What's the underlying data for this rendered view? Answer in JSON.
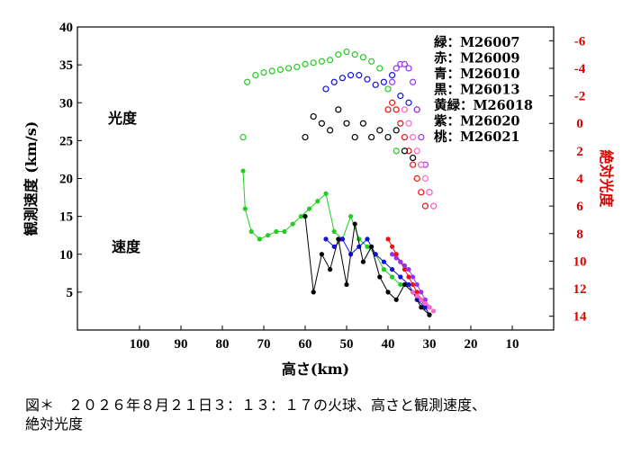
{
  "chart_data": {
    "type": "scatter",
    "xlabel": "高さ(km)",
    "ylabel": "観測速度 (km/s)",
    "y2label": "絶対光度",
    "xlim": [
      115,
      0
    ],
    "xticks": [
      100,
      90,
      80,
      70,
      60,
      50,
      40,
      30,
      20,
      10
    ],
    "ylim": [
      0,
      40
    ],
    "yticks": [
      5,
      10,
      15,
      20,
      25,
      30,
      35,
      40
    ],
    "y2lim": [
      15,
      -7
    ],
    "y2ticks": [
      -6,
      -4,
      -2,
      0,
      2,
      4,
      6,
      8,
      10,
      12,
      14
    ],
    "grid": false,
    "annotations": {
      "luminosity": "光度",
      "velocity": "速度"
    },
    "legend": [
      "緑：M26007",
      "赤：M26009",
      "青：M26010",
      "黒：M26013",
      "黄緑：M26018",
      "紫：M26020",
      "桃：M26021"
    ],
    "series": [
      {
        "name": "M26007",
        "color": "#22cc22",
        "kind": "speed",
        "points": [
          [
            75,
            21
          ],
          [
            74.5,
            16
          ],
          [
            73,
            13
          ],
          [
            71,
            12
          ],
          [
            69,
            12.5
          ],
          [
            67,
            13
          ],
          [
            65,
            13
          ],
          [
            63,
            14
          ],
          [
            61,
            15
          ],
          [
            59,
            16
          ],
          [
            57,
            17
          ],
          [
            55,
            18
          ],
          [
            53,
            13
          ],
          [
            51,
            12
          ],
          [
            49,
            15
          ],
          [
            47,
            12
          ],
          [
            45,
            11
          ],
          [
            43,
            10
          ],
          [
            41,
            8
          ],
          [
            39,
            7
          ],
          [
            37,
            6
          ]
        ]
      },
      {
        "name": "M26007",
        "color": "#22cc22",
        "kind": "luminosity",
        "points": [
          [
            75,
            1
          ],
          [
            74,
            -3
          ],
          [
            72,
            -3.5
          ],
          [
            70,
            -3.7
          ],
          [
            68,
            -3.8
          ],
          [
            66,
            -3.9
          ],
          [
            64,
            -4
          ],
          [
            62,
            -4.1
          ],
          [
            60,
            -4.3
          ],
          [
            58,
            -4.4
          ],
          [
            56,
            -4.5
          ],
          [
            54,
            -4.6
          ],
          [
            52,
            -5
          ],
          [
            50,
            -5.2
          ],
          [
            48,
            -5
          ],
          [
            46,
            -4.8
          ],
          [
            44,
            -4.5
          ],
          [
            42,
            -4
          ],
          [
            40,
            -2.5
          ],
          [
            38,
            2
          ]
        ]
      },
      {
        "name": "M26009",
        "color": "#ee1111",
        "kind": "speed",
        "points": [
          [
            40,
            12
          ],
          [
            39,
            11
          ],
          [
            38,
            10
          ],
          [
            37,
            9
          ],
          [
            36,
            8
          ],
          [
            35,
            7
          ],
          [
            34,
            6
          ],
          [
            33,
            5
          ],
          [
            32,
            4
          ],
          [
            31,
            3
          ],
          [
            30,
            2
          ]
        ]
      },
      {
        "name": "M26009",
        "color": "#ee1111",
        "kind": "luminosity",
        "points": [
          [
            40,
            -1
          ],
          [
            39,
            -1.5
          ],
          [
            38,
            -1
          ],
          [
            37,
            0
          ],
          [
            36,
            1
          ],
          [
            35,
            2
          ],
          [
            34,
            3
          ],
          [
            33,
            4
          ],
          [
            32,
            5
          ],
          [
            31,
            6
          ]
        ]
      },
      {
        "name": "M26010",
        "color": "#1111dd",
        "kind": "speed",
        "points": [
          [
            55,
            12
          ],
          [
            53,
            11
          ],
          [
            51,
            12
          ],
          [
            49,
            10
          ],
          [
            47,
            11
          ],
          [
            45,
            12
          ],
          [
            43,
            10
          ],
          [
            41,
            9
          ],
          [
            39,
            8
          ],
          [
            37,
            7
          ],
          [
            35,
            6
          ],
          [
            33,
            4
          ],
          [
            31,
            3
          ],
          [
            30,
            2
          ]
        ]
      },
      {
        "name": "M26010",
        "color": "#1111dd",
        "kind": "luminosity",
        "points": [
          [
            55,
            -2.5
          ],
          [
            53,
            -3
          ],
          [
            51,
            -3.3
          ],
          [
            49,
            -3.5
          ],
          [
            47,
            -3.5
          ],
          [
            45,
            -3.2
          ],
          [
            43,
            -2.8
          ],
          [
            41,
            -3
          ],
          [
            39,
            -3.5
          ],
          [
            37,
            -2
          ],
          [
            35,
            -1.5
          ],
          [
            33,
            -1
          ]
        ]
      },
      {
        "name": "M26013",
        "color": "#000000",
        "kind": "speed",
        "points": [
          [
            60,
            15
          ],
          [
            58,
            5
          ],
          [
            56,
            10
          ],
          [
            54,
            8
          ],
          [
            52,
            12
          ],
          [
            50,
            6
          ],
          [
            48,
            14
          ],
          [
            46,
            9
          ],
          [
            44,
            11
          ],
          [
            42,
            7
          ],
          [
            40,
            5
          ],
          [
            38,
            4
          ],
          [
            36,
            6
          ],
          [
            34,
            5
          ],
          [
            32,
            3
          ],
          [
            30,
            2
          ]
        ]
      },
      {
        "name": "M26013",
        "color": "#000000",
        "kind": "luminosity",
        "points": [
          [
            60,
            1
          ],
          [
            58,
            -0.5
          ],
          [
            56,
            0
          ],
          [
            54,
            0.5
          ],
          [
            52,
            -1
          ],
          [
            50,
            0
          ],
          [
            48,
            1
          ],
          [
            46,
            0
          ],
          [
            44,
            1
          ],
          [
            42,
            0.5
          ],
          [
            40,
            1
          ],
          [
            38,
            0.5
          ],
          [
            36,
            2
          ],
          [
            34,
            2.5
          ],
          [
            32,
            3
          ],
          [
            30,
            5
          ]
        ]
      },
      {
        "name": "M26020",
        "color": "#9933ee",
        "kind": "speed",
        "points": [
          [
            39,
            10
          ],
          [
            38,
            9.5
          ],
          [
            37,
            9
          ],
          [
            36,
            8.5
          ],
          [
            35,
            8
          ],
          [
            34,
            7
          ],
          [
            33,
            6
          ],
          [
            32,
            5
          ],
          [
            31,
            4
          ],
          [
            30,
            3
          ]
        ]
      },
      {
        "name": "M26020",
        "color": "#9933ee",
        "kind": "luminosity",
        "points": [
          [
            39,
            -3
          ],
          [
            38,
            -4
          ],
          [
            37,
            -4.3
          ],
          [
            36,
            -4.3
          ],
          [
            35,
            -4
          ],
          [
            34,
            -3
          ],
          [
            33,
            -1
          ],
          [
            32,
            1
          ],
          [
            31,
            3
          ],
          [
            30,
            5
          ],
          [
            29,
            6
          ]
        ]
      },
      {
        "name": "M26021",
        "color": "#ff66cc",
        "kind": "speed",
        "points": [
          [
            34,
            5
          ],
          [
            33,
            4.5
          ],
          [
            32,
            4
          ],
          [
            31,
            3.5
          ],
          [
            30,
            3
          ],
          [
            29,
            2.5
          ]
        ]
      },
      {
        "name": "M26021",
        "color": "#ff66cc",
        "kind": "luminosity",
        "points": [
          [
            36,
            -1
          ],
          [
            35,
            0
          ],
          [
            34,
            1
          ],
          [
            33,
            2
          ],
          [
            32,
            3
          ],
          [
            31,
            4
          ],
          [
            30,
            5
          ],
          [
            29,
            6
          ]
        ]
      }
    ]
  },
  "caption": "図＊　２０２６年８月２１日３：１３：１７の火球、高さと観測速度、\n絶対光度"
}
